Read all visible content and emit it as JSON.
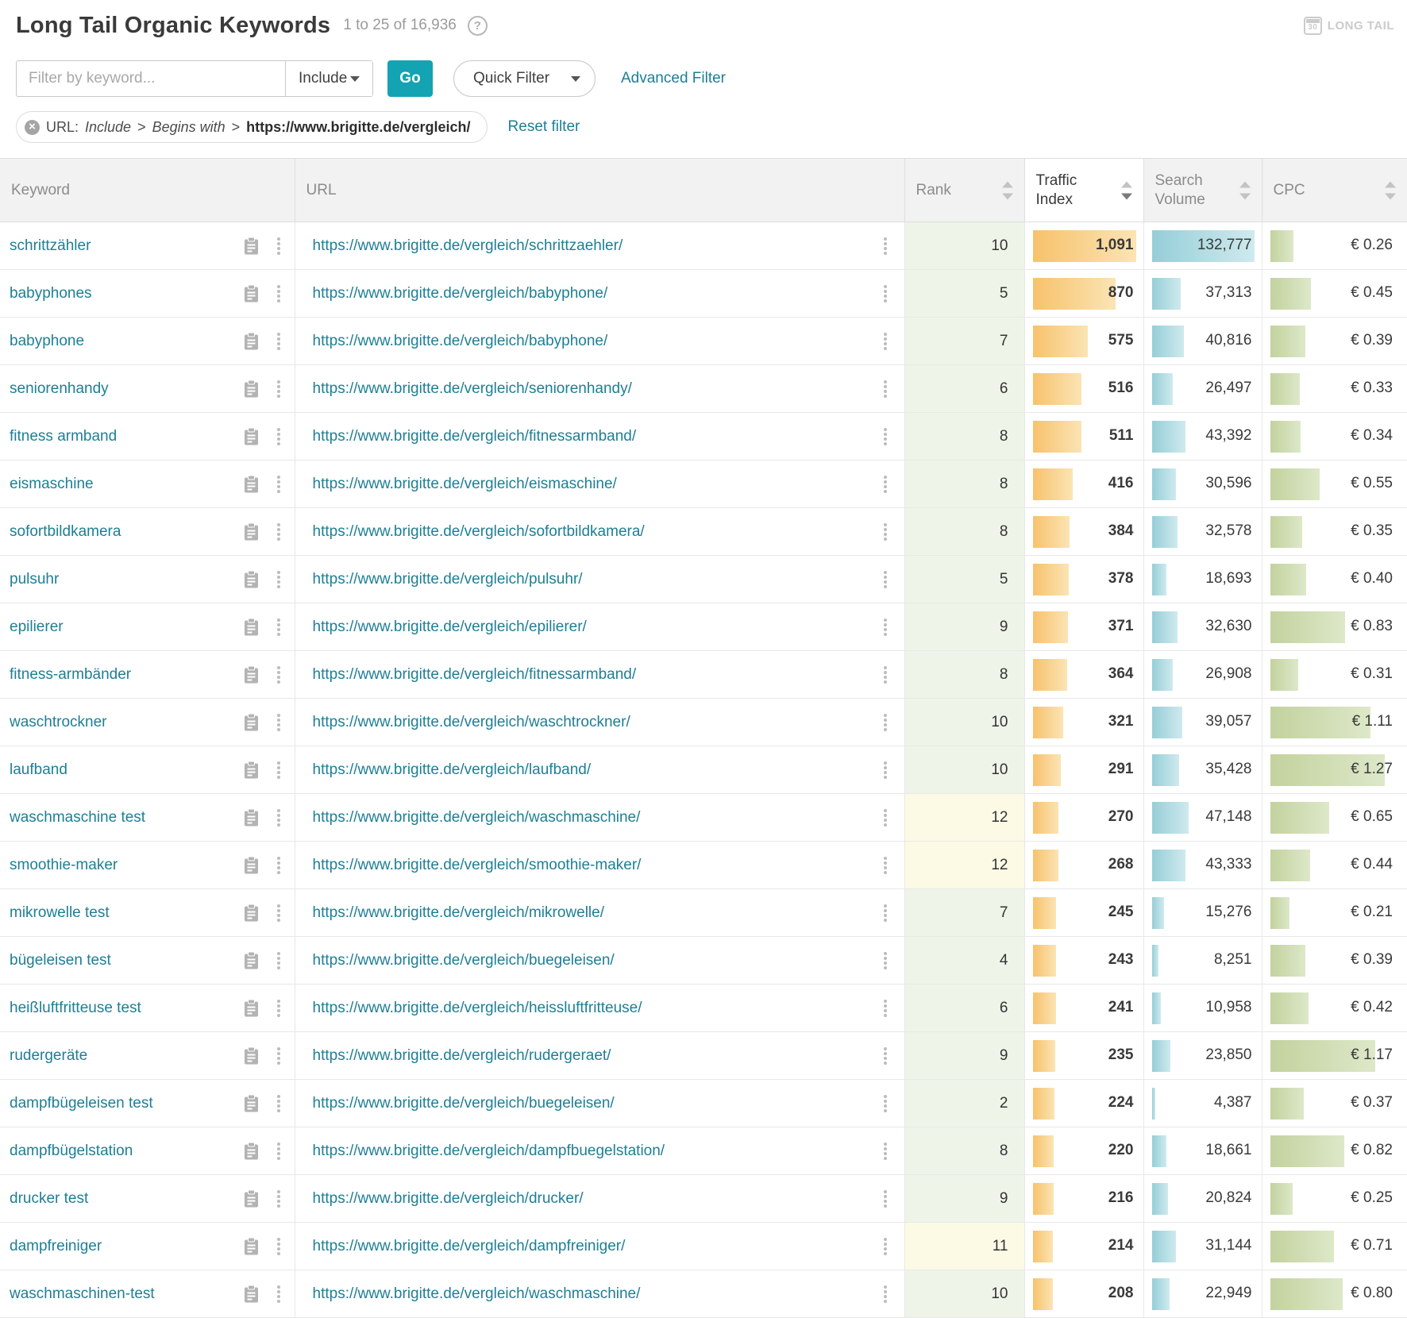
{
  "header": {
    "title": "Long Tail Organic Keywords",
    "result_range": "1 to 25 of 16,936",
    "help_icon": "question-circle-icon",
    "module_badge": {
      "icon": "calendar-30-icon",
      "calendar_day": "30",
      "label": "LONG TAIL"
    }
  },
  "filter_bar": {
    "keyword_input": {
      "value": "",
      "placeholder": "Filter by keyword..."
    },
    "mode_select": {
      "value": "Include",
      "icon": "chevron-down-icon"
    },
    "go_button_label": "Go",
    "quick_filter": {
      "label": "Quick Filter",
      "icon": "chevron-down-icon"
    },
    "advanced_filter_label": "Advanced Filter"
  },
  "active_filter": {
    "remove_icon": "circle-x-icon",
    "field": "URL:",
    "mode": "Include",
    "separator1": ">",
    "operator": "Begins with",
    "separator2": ">",
    "value": "https://www.brigitte.de/vergleich/",
    "reset_label": "Reset filter"
  },
  "table": {
    "columns": [
      {
        "key": "keyword",
        "label": "Keyword",
        "sortable": false
      },
      {
        "key": "url",
        "label": "URL",
        "sortable": false
      },
      {
        "key": "rank",
        "label": "Rank",
        "sortable": true,
        "active": false
      },
      {
        "key": "traffic_index",
        "label": "Traffic Index",
        "sortable": true,
        "active": true,
        "sort_direction": "desc"
      },
      {
        "key": "search_volume",
        "label": "Search Volume",
        "sortable": true,
        "active": false
      },
      {
        "key": "cpc",
        "label": "CPC",
        "sortable": true,
        "active": false
      }
    ],
    "scales": {
      "traffic_index_max": 1091,
      "search_volume_max": 132777,
      "cpc_bar_max": 1.44
    },
    "rank_highlight_threshold": 10,
    "rows": [
      {
        "keyword": "schrittzähler",
        "url": "https://www.brigitte.de/vergleich/schrittzaehler/",
        "rank": 10,
        "traffic_index": 1091,
        "traffic_index_label": "1,091",
        "search_volume": 132777,
        "search_volume_label": "132,777",
        "cpc": 0.26,
        "cpc_label": "€ 0.26"
      },
      {
        "keyword": "babyphones",
        "url": "https://www.brigitte.de/vergleich/babyphone/",
        "rank": 5,
        "traffic_index": 870,
        "traffic_index_label": "870",
        "search_volume": 37313,
        "search_volume_label": "37,313",
        "cpc": 0.45,
        "cpc_label": "€ 0.45"
      },
      {
        "keyword": "babyphone",
        "url": "https://www.brigitte.de/vergleich/babyphone/",
        "rank": 7,
        "traffic_index": 575,
        "traffic_index_label": "575",
        "search_volume": 40816,
        "search_volume_label": "40,816",
        "cpc": 0.39,
        "cpc_label": "€ 0.39"
      },
      {
        "keyword": "seniorenhandy",
        "url": "https://www.brigitte.de/vergleich/seniorenhandy/",
        "rank": 6,
        "traffic_index": 516,
        "traffic_index_label": "516",
        "search_volume": 26497,
        "search_volume_label": "26,497",
        "cpc": 0.33,
        "cpc_label": "€ 0.33"
      },
      {
        "keyword": "fitness armband",
        "url": "https://www.brigitte.de/vergleich/fitnessarmband/",
        "rank": 8,
        "traffic_index": 511,
        "traffic_index_label": "511",
        "search_volume": 43392,
        "search_volume_label": "43,392",
        "cpc": 0.34,
        "cpc_label": "€ 0.34"
      },
      {
        "keyword": "eismaschine",
        "url": "https://www.brigitte.de/vergleich/eismaschine/",
        "rank": 8,
        "traffic_index": 416,
        "traffic_index_label": "416",
        "search_volume": 30596,
        "search_volume_label": "30,596",
        "cpc": 0.55,
        "cpc_label": "€ 0.55"
      },
      {
        "keyword": "sofortbildkamera",
        "url": "https://www.brigitte.de/vergleich/sofortbildkamera/",
        "rank": 8,
        "traffic_index": 384,
        "traffic_index_label": "384",
        "search_volume": 32578,
        "search_volume_label": "32,578",
        "cpc": 0.35,
        "cpc_label": "€ 0.35"
      },
      {
        "keyword": "pulsuhr",
        "url": "https://www.brigitte.de/vergleich/pulsuhr/",
        "rank": 5,
        "traffic_index": 378,
        "traffic_index_label": "378",
        "search_volume": 18693,
        "search_volume_label": "18,693",
        "cpc": 0.4,
        "cpc_label": "€ 0.40"
      },
      {
        "keyword": "epilierer",
        "url": "https://www.brigitte.de/vergleich/epilierer/",
        "rank": 9,
        "traffic_index": 371,
        "traffic_index_label": "371",
        "search_volume": 32630,
        "search_volume_label": "32,630",
        "cpc": 0.83,
        "cpc_label": "€ 0.83"
      },
      {
        "keyword": "fitness-armbänder",
        "url": "https://www.brigitte.de/vergleich/fitnessarmband/",
        "rank": 8,
        "traffic_index": 364,
        "traffic_index_label": "364",
        "search_volume": 26908,
        "search_volume_label": "26,908",
        "cpc": 0.31,
        "cpc_label": "€ 0.31"
      },
      {
        "keyword": "waschtrockner",
        "url": "https://www.brigitte.de/vergleich/waschtrockner/",
        "rank": 10,
        "traffic_index": 321,
        "traffic_index_label": "321",
        "search_volume": 39057,
        "search_volume_label": "39,057",
        "cpc": 1.11,
        "cpc_label": "€ 1.11"
      },
      {
        "keyword": "laufband",
        "url": "https://www.brigitte.de/vergleich/laufband/",
        "rank": 10,
        "traffic_index": 291,
        "traffic_index_label": "291",
        "search_volume": 35428,
        "search_volume_label": "35,428",
        "cpc": 1.27,
        "cpc_label": "€ 1.27"
      },
      {
        "keyword": "waschmaschine test",
        "url": "https://www.brigitte.de/vergleich/waschmaschine/",
        "rank": 12,
        "traffic_index": 270,
        "traffic_index_label": "270",
        "search_volume": 47148,
        "search_volume_label": "47,148",
        "cpc": 0.65,
        "cpc_label": "€ 0.65"
      },
      {
        "keyword": "smoothie-maker",
        "url": "https://www.brigitte.de/vergleich/smoothie-maker/",
        "rank": 12,
        "traffic_index": 268,
        "traffic_index_label": "268",
        "search_volume": 43333,
        "search_volume_label": "43,333",
        "cpc": 0.44,
        "cpc_label": "€ 0.44"
      },
      {
        "keyword": "mikrowelle test",
        "url": "https://www.brigitte.de/vergleich/mikrowelle/",
        "rank": 7,
        "traffic_index": 245,
        "traffic_index_label": "245",
        "search_volume": 15276,
        "search_volume_label": "15,276",
        "cpc": 0.21,
        "cpc_label": "€ 0.21"
      },
      {
        "keyword": "bügeleisen test",
        "url": "https://www.brigitte.de/vergleich/buegeleisen/",
        "rank": 4,
        "traffic_index": 243,
        "traffic_index_label": "243",
        "search_volume": 8251,
        "search_volume_label": "8,251",
        "cpc": 0.39,
        "cpc_label": "€ 0.39"
      },
      {
        "keyword": "heißluftfritteuse test",
        "url": "https://www.brigitte.de/vergleich/heissluftfritteuse/",
        "rank": 6,
        "traffic_index": 241,
        "traffic_index_label": "241",
        "search_volume": 10958,
        "search_volume_label": "10,958",
        "cpc": 0.42,
        "cpc_label": "€ 0.42"
      },
      {
        "keyword": "rudergeräte",
        "url": "https://www.brigitte.de/vergleich/rudergeraet/",
        "rank": 9,
        "traffic_index": 235,
        "traffic_index_label": "235",
        "search_volume": 23850,
        "search_volume_label": "23,850",
        "cpc": 1.17,
        "cpc_label": "€ 1.17"
      },
      {
        "keyword": "dampfbügeleisen test",
        "url": "https://www.brigitte.de/vergleich/buegeleisen/",
        "rank": 2,
        "traffic_index": 224,
        "traffic_index_label": "224",
        "search_volume": 4387,
        "search_volume_label": "4,387",
        "cpc": 0.37,
        "cpc_label": "€ 0.37"
      },
      {
        "keyword": "dampfbügelstation",
        "url": "https://www.brigitte.de/vergleich/dampfbuegelstation/",
        "rank": 8,
        "traffic_index": 220,
        "traffic_index_label": "220",
        "search_volume": 18661,
        "search_volume_label": "18,661",
        "cpc": 0.82,
        "cpc_label": "€ 0.82"
      },
      {
        "keyword": "drucker test",
        "url": "https://www.brigitte.de/vergleich/drucker/",
        "rank": 9,
        "traffic_index": 216,
        "traffic_index_label": "216",
        "search_volume": 20824,
        "search_volume_label": "20,824",
        "cpc": 0.25,
        "cpc_label": "€ 0.25"
      },
      {
        "keyword": "dampfreiniger",
        "url": "https://www.brigitte.de/vergleich/dampfreiniger/",
        "rank": 11,
        "traffic_index": 214,
        "traffic_index_label": "214",
        "search_volume": 31144,
        "search_volume_label": "31,144",
        "cpc": 0.71,
        "cpc_label": "€ 0.71"
      },
      {
        "keyword": "waschmaschinen-test",
        "url": "https://www.brigitte.de/vergleich/waschmaschine/",
        "rank": 10,
        "traffic_index": 208,
        "traffic_index_label": "208",
        "search_volume": 22949,
        "search_volume_label": "22,949",
        "cpc": 0.8,
        "cpc_label": "€ 0.80"
      }
    ]
  },
  "colors": {
    "accent_teal": "#14a3b3",
    "link_teal": "#1d7f95",
    "traffic_bar": "#f7c26c",
    "search_volume_bar": "#96ced8",
    "cpc_bar": "#c3d29e",
    "rank_good_bg": "#eef5e8",
    "rank_warn_bg": "#fcfae5"
  }
}
